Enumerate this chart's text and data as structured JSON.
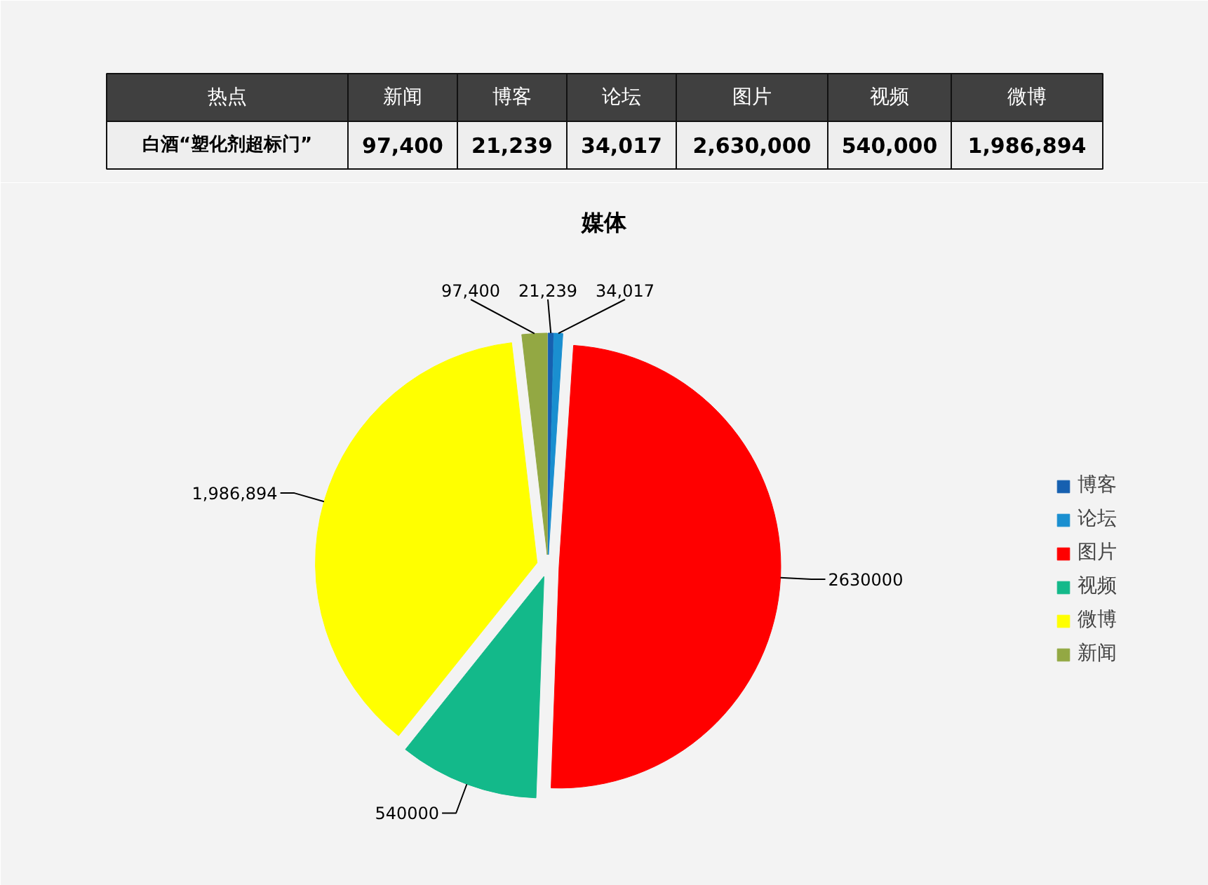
{
  "chart_data": [
    {
      "type": "other",
      "categories": [
        "新闻",
        "博客",
        "论坛",
        "图片",
        "视频",
        "微博"
      ],
      "values": [
        97400,
        21239,
        34017,
        2630000,
        540000,
        1986894
      ],
      "value_labels": [
        "97,400",
        "21,239",
        "34,017",
        "2,630,000",
        "540,000",
        "1,986,894"
      ],
      "annotations": [
        "热点",
        "白酒“塑化剂超标门”"
      ]
    },
    {
      "type": "pie",
      "title": "媒体",
      "categories": [
        "博客",
        "论坛",
        "图片",
        "视频",
        "微博",
        "新闻"
      ],
      "values": [
        21239,
        34017,
        2630000,
        540000,
        1986894,
        97400
      ],
      "colors": [
        "#1660b0",
        "#1a8fd0",
        "#ff0000",
        "#13b98a",
        "#ffff00",
        "#93a843"
      ],
      "value_labels": [
        "21,239",
        "34,017",
        "2630000",
        "540000",
        "1,986,894",
        "97,400"
      ],
      "legend": "right"
    }
  ]
}
